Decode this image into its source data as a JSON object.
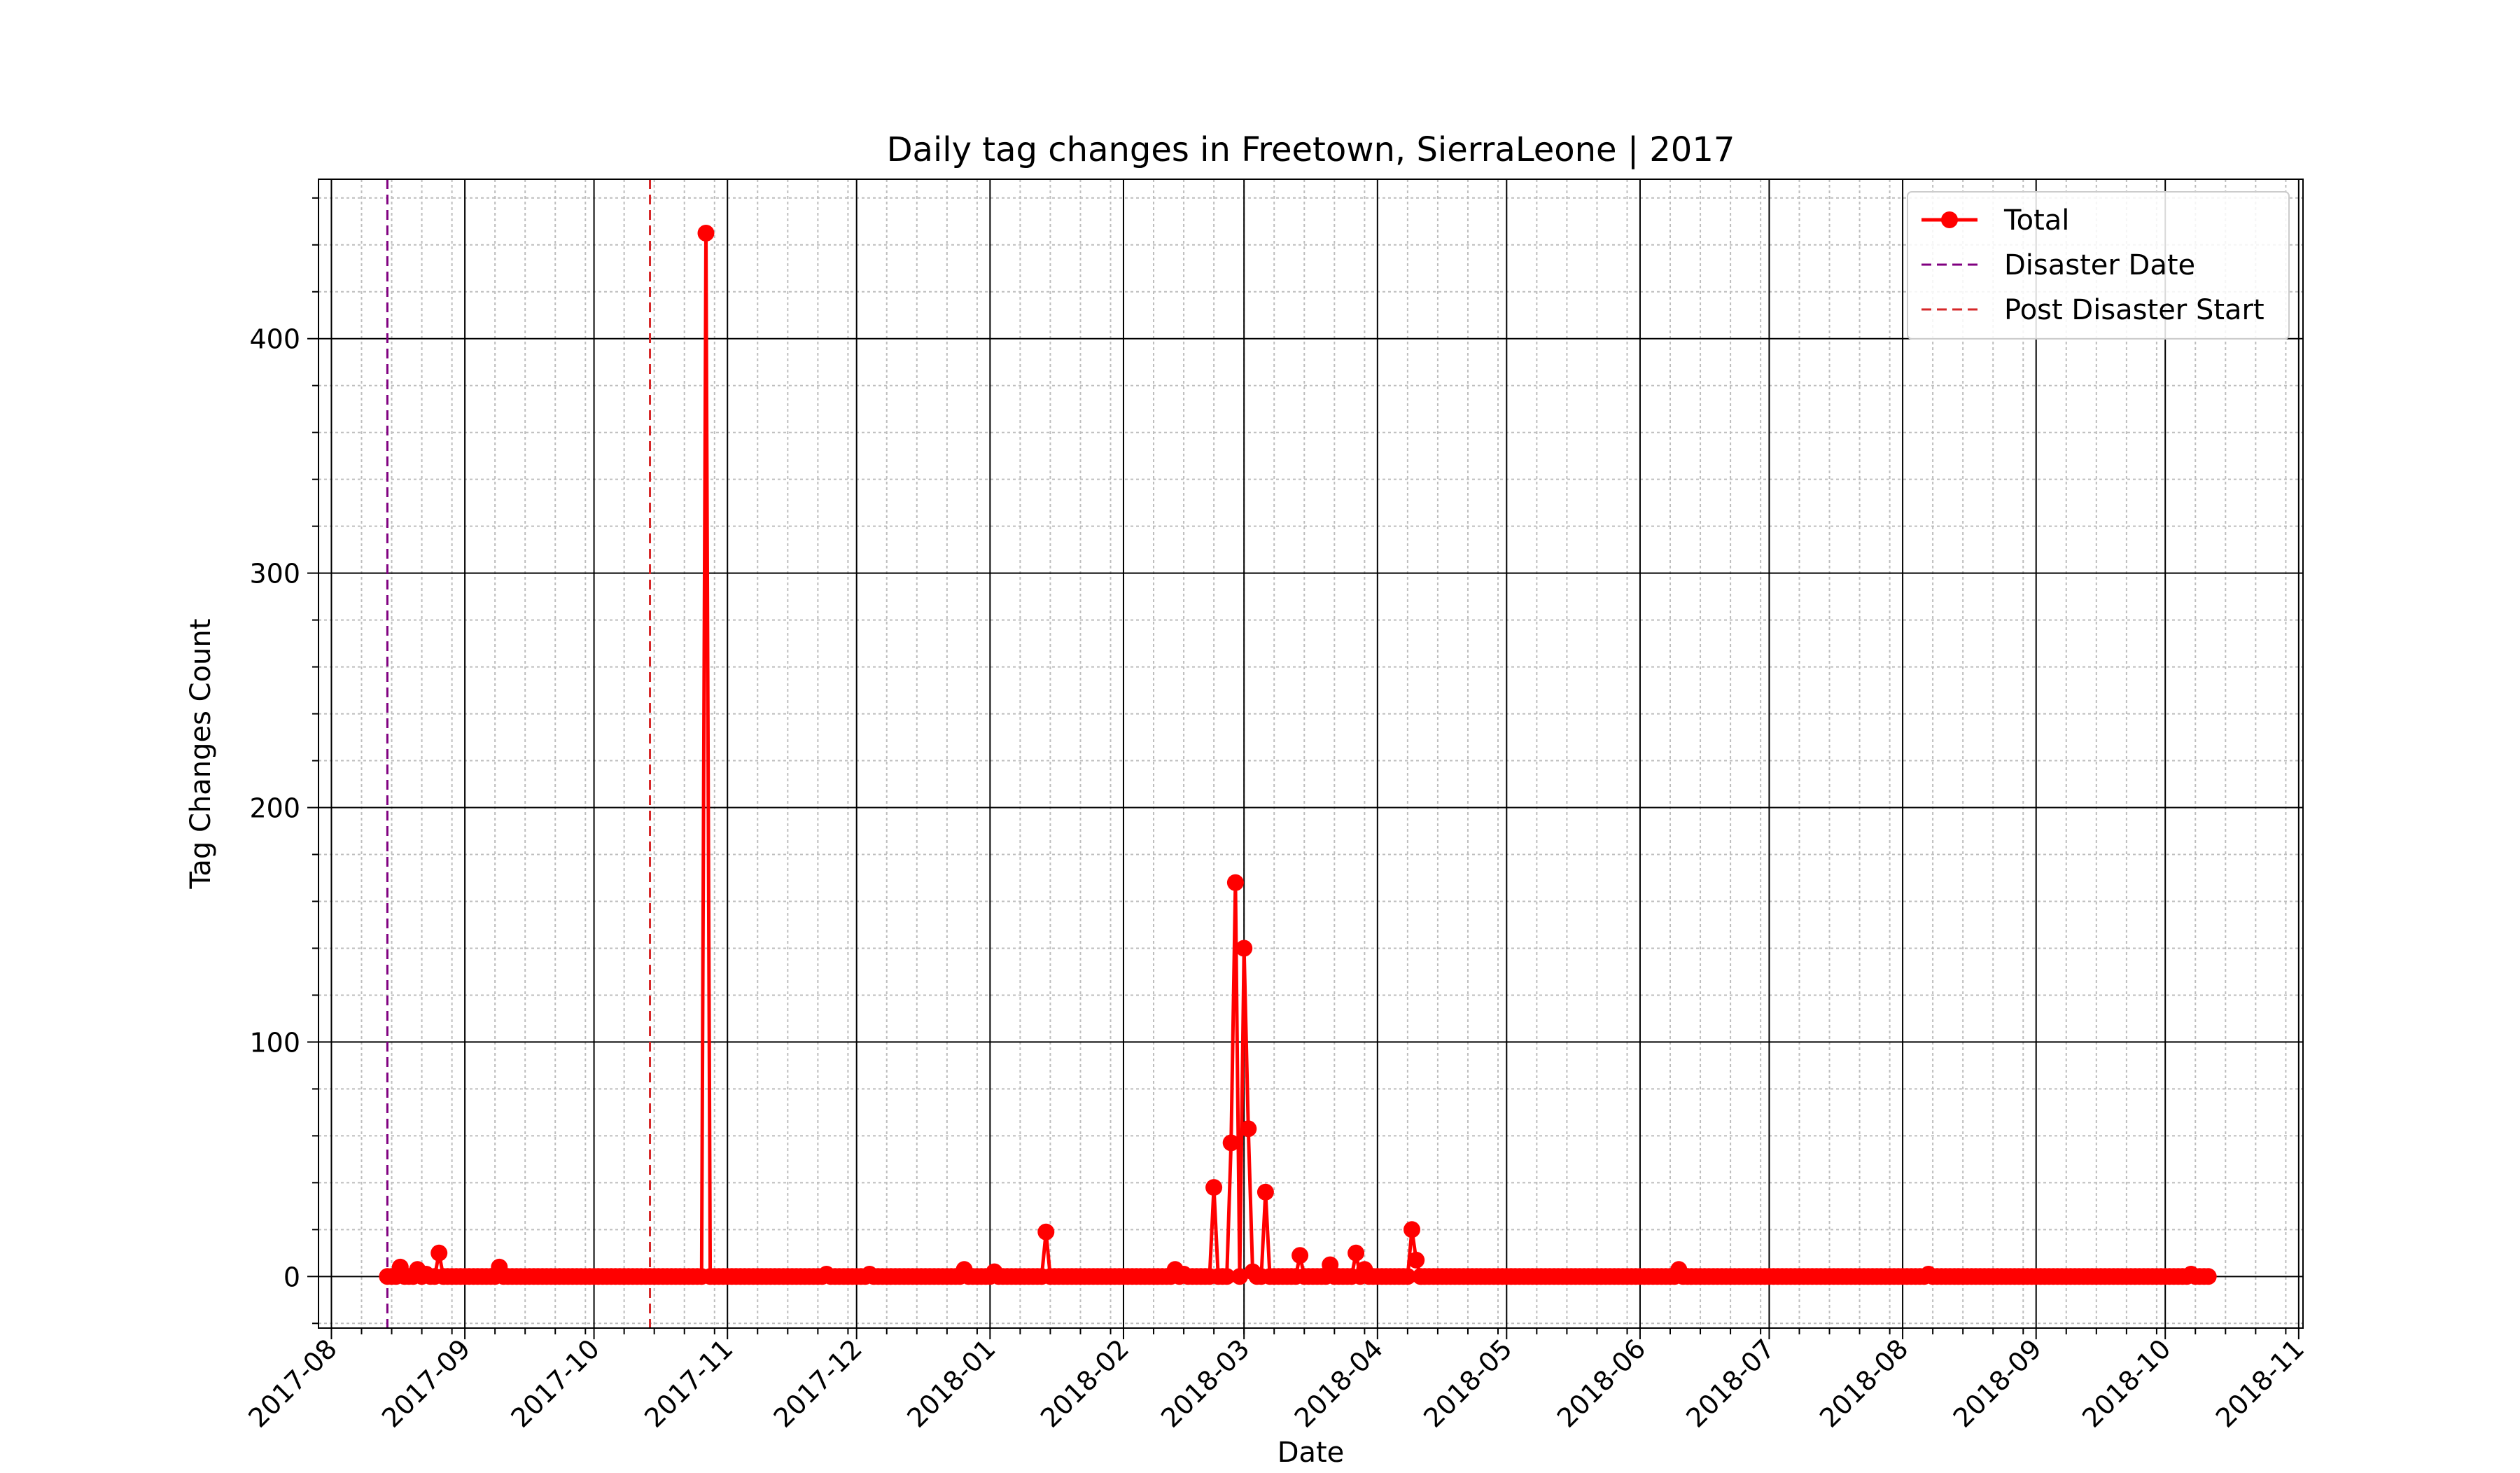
{
  "chart_data": {
    "type": "line",
    "title": "Daily tag changes in Freetown, SierraLeone | 2017",
    "xlabel": "Date",
    "ylabel": "Tag Changes Count",
    "x_range": [
      "2017-07-29",
      "2018-11-02"
    ],
    "y_range": [
      -22,
      468
    ],
    "yticks": [
      0,
      100,
      200,
      300,
      400
    ],
    "y_minor_step": 20,
    "xticks": [
      "2017-08",
      "2017-09",
      "2017-10",
      "2017-11",
      "2017-12",
      "2018-01",
      "2018-02",
      "2018-03",
      "2018-04",
      "2018-05",
      "2018-06",
      "2018-07",
      "2018-08",
      "2018-09",
      "2018-10",
      "2018-11"
    ],
    "x_minor_days": [
      8,
      15,
      22,
      29
    ],
    "grid": true,
    "legend_position": "top-right",
    "range": [
      "2017-08-14",
      "2018-10-11"
    ],
    "baseline_value": 0,
    "peaks": [
      [
        "2017-08-14",
        0
      ],
      [
        "2017-08-17",
        4
      ],
      [
        "2017-08-21",
        3
      ],
      [
        "2017-08-23",
        1
      ],
      [
        "2017-08-26",
        10
      ],
      [
        "2017-09-09",
        4
      ],
      [
        "2017-10-27",
        445
      ],
      [
        "2017-11-24",
        1
      ],
      [
        "2017-12-04",
        1
      ],
      [
        "2017-12-26",
        3
      ],
      [
        "2018-01-02",
        2
      ],
      [
        "2018-01-14",
        19
      ],
      [
        "2018-02-13",
        3
      ],
      [
        "2018-02-15",
        1
      ],
      [
        "2018-02-22",
        38
      ],
      [
        "2018-02-26",
        57
      ],
      [
        "2018-02-27",
        168
      ],
      [
        "2018-03-01",
        140
      ],
      [
        "2018-03-02",
        63
      ],
      [
        "2018-03-03",
        2
      ],
      [
        "2018-03-06",
        36
      ],
      [
        "2018-03-14",
        9
      ],
      [
        "2018-03-21",
        5
      ],
      [
        "2018-03-27",
        10
      ],
      [
        "2018-03-29",
        3
      ],
      [
        "2018-04-09",
        20
      ],
      [
        "2018-04-10",
        7
      ],
      [
        "2018-06-10",
        3
      ],
      [
        "2018-08-07",
        1
      ],
      [
        "2018-10-07",
        1
      ]
    ],
    "series": [
      {
        "name": "Total",
        "color": "#ff0000",
        "marker": "circle"
      }
    ],
    "vlines": [
      {
        "name": "Disaster Date",
        "x": "2017-08-14",
        "color": "#800080",
        "style": "dashed"
      },
      {
        "name": "Post Disaster Start",
        "x": "2017-10-14",
        "color": "#d62728",
        "style": "dashed"
      }
    ]
  }
}
